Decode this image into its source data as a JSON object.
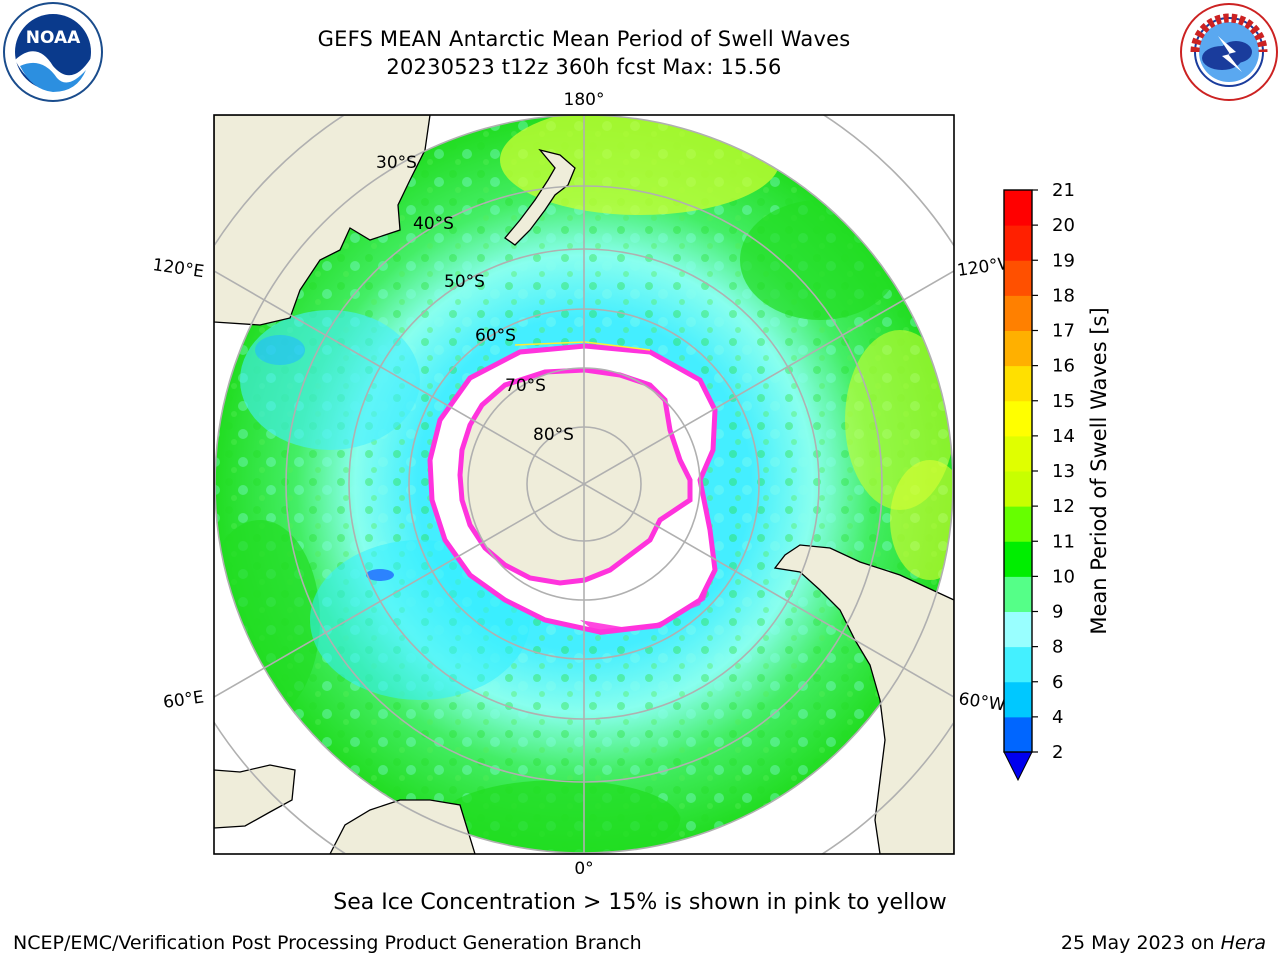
{
  "header": {
    "title_line1": "GEFS MEAN Antarctic Mean Period of Swell Waves",
    "title_line2": "20230523 t12z 360h fcst   Max: 15.56"
  },
  "logos": {
    "left": "noaa-logo",
    "left_text": "NOAA",
    "right": "nws-logo",
    "right_text": "NATIONAL WEATHER SERVICE"
  },
  "map": {
    "projection": "south-polar-stereographic",
    "longitude_labels": {
      "top": "180°",
      "bottom": "0°",
      "upper_left": "120°E",
      "upper_right": "120°W",
      "lower_left": "60°E",
      "lower_right": "60°W"
    },
    "latitude_labels": [
      "30°S",
      "40°S",
      "50°S",
      "60°S",
      "70°S",
      "80°S"
    ],
    "colors": {
      "land": "#efedda",
      "ice": "#ffffff",
      "ice_edge_pink": "#ff33dd",
      "ice_edge_yellow": "#ffee33",
      "gridline": "#b0b0b0",
      "ocean_dominant_inner": "#44eeff",
      "ocean_dominant_outer": "#22dd22"
    }
  },
  "colorbar": {
    "label": "Mean Period of Swell Waves [s]",
    "ticks": [
      "2",
      "4",
      "6",
      "8",
      "9",
      "10",
      "11",
      "12",
      "13",
      "14",
      "15",
      "16",
      "17",
      "18",
      "19",
      "20",
      "21"
    ],
    "colors": [
      "#0066ff",
      "#00c8ff",
      "#44f0ff",
      "#99ffff",
      "#55ff88",
      "#00ee00",
      "#66ff00",
      "#c8ff00",
      "#e0ff00",
      "#ffff00",
      "#ffe000",
      "#ffb000",
      "#ff8000",
      "#ff5000",
      "#ff2000",
      "#ff0000"
    ],
    "under_color": "#0000ee"
  },
  "footer": {
    "ice_note": "Sea Ice Concentration > 15% is shown in pink to yellow",
    "credit": "NCEP/EMC/Verification Post Processing Product Generation Branch",
    "date_prefix": "25 May 2023 on ",
    "machine": "Hera"
  }
}
